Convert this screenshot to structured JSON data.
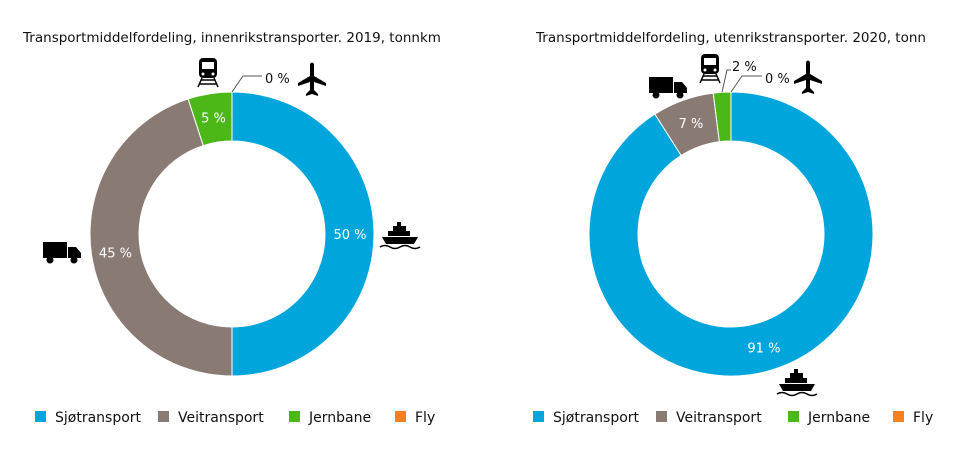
{
  "colors": {
    "Sjøtransport": "#00a5db",
    "Veitransport": "#8a7a74",
    "Jernbane": "#4cb817",
    "Fly": "#f7801e"
  },
  "chart_data": [
    {
      "type": "pie",
      "donut": true,
      "title": "Transportmiddelfordeling, innenrikstransporter. 2019, tonnkm",
      "categories": [
        "Sjøtransport",
        "Veitransport",
        "Jernbane",
        "Fly"
      ],
      "values": [
        50,
        45,
        5,
        0
      ],
      "labels": [
        "50 %",
        "45 %",
        "5 %",
        "0 %"
      ],
      "legend": "bottom",
      "icons": [
        "ship-icon",
        "truck-icon",
        "train-icon",
        "plane-icon"
      ]
    },
    {
      "type": "pie",
      "donut": true,
      "title": "Transportmiddelfordeling, utenrikstransporter. 2020, tonn",
      "categories": [
        "Sjøtransport",
        "Veitransport",
        "Jernbane",
        "Fly"
      ],
      "values": [
        91,
        7,
        2,
        0
      ],
      "labels": [
        "91 %",
        "7 %",
        "2 %",
        "0 %"
      ],
      "legend": "bottom",
      "icons": [
        "ship-icon",
        "truck-icon",
        "train-icon",
        "plane-icon"
      ]
    }
  ]
}
